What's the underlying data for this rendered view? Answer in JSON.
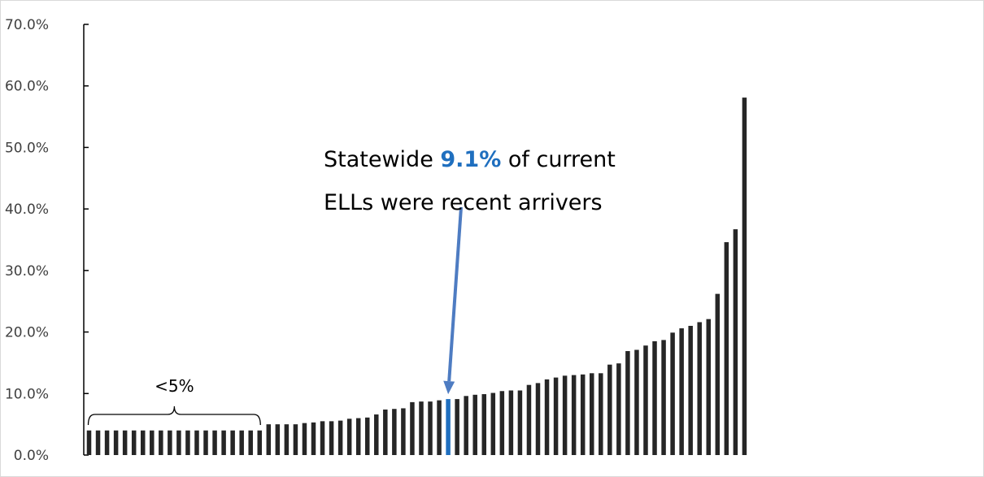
{
  "chart_data": {
    "type": "bar",
    "ylim": [
      0,
      70
    ],
    "y_ticks": [
      "0.0%",
      "10.0%",
      "20.0%",
      "30.0%",
      "40.0%",
      "50.0%",
      "60.0%",
      "70.0%"
    ],
    "y_tick_values": [
      0,
      10,
      20,
      30,
      40,
      50,
      60,
      70
    ],
    "grid": false,
    "values": [
      4.0,
      4.0,
      4.0,
      4.0,
      4.0,
      4.0,
      4.0,
      4.0,
      4.0,
      4.0,
      4.0,
      4.0,
      4.0,
      4.0,
      4.0,
      4.0,
      4.0,
      4.0,
      4.0,
      4.0,
      5.0,
      5.0,
      5.0,
      5.0,
      5.2,
      5.3,
      5.5,
      5.5,
      5.6,
      5.9,
      6.0,
      6.1,
      6.6,
      7.4,
      7.5,
      7.6,
      8.6,
      8.7,
      8.7,
      8.9,
      9.1,
      9.1,
      9.6,
      9.8,
      9.9,
      10.1,
      10.4,
      10.5,
      10.5,
      11.4,
      11.7,
      12.3,
      12.6,
      12.9,
      13.0,
      13.1,
      13.3,
      13.3,
      14.7,
      14.9,
      16.9,
      17.1,
      17.8,
      18.5,
      18.7,
      19.9,
      20.6,
      21.0,
      21.6,
      22.1,
      26.2,
      34.6,
      36.7,
      58.1
    ],
    "highlight_index": 40,
    "bar_color": "#262626",
    "highlight_color": "#1f6fbf",
    "annotation": {
      "prefix": "Statewide ",
      "highlight": "9.1%",
      "suffix": " of current",
      "line2": "ELLs were recent arrivers",
      "arrow_color": "#4e7cc2"
    },
    "brace": {
      "label": "<5%",
      "from_index": 0,
      "to_index": 19
    }
  }
}
